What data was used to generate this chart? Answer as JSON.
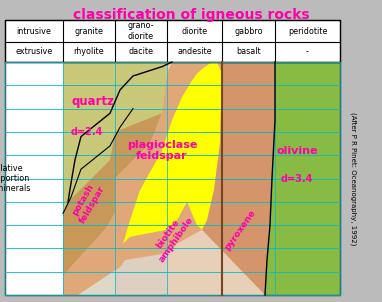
{
  "title": "classification of igneous rocks",
  "title_color": "#ff00aa",
  "fig_bg": "#bbbbbb",
  "intrusive_row": [
    "intrusive",
    "granite",
    "grano-\ndiorite",
    "diorite",
    "gabbro",
    "peridotite"
  ],
  "extrusive_row": [
    "extrusive",
    "rhyolite",
    "dacite",
    "andesite",
    "basalt",
    "-"
  ],
  "ylabel": "relative\nproportion\nof minerals",
  "citation": "(After P R Pinet: Oceanography, 1992)",
  "grid_color": "#00bbcc",
  "quartz_color": "#c8c878",
  "potash_color": "#c89858",
  "plagio_color": "#e0a878",
  "biotite_color": "#ffff00",
  "pyroxene_color": "#d4956a",
  "olivine_color": "#88bb44",
  "col_bg_colors": [
    "#ddd8c8",
    "#ddd0c0",
    "#e8d0b8",
    "#e8d0b8",
    "#e0d0b8",
    "#b8cc88"
  ],
  "label_color": "#ff00aa",
  "n_grid_rows": 10
}
